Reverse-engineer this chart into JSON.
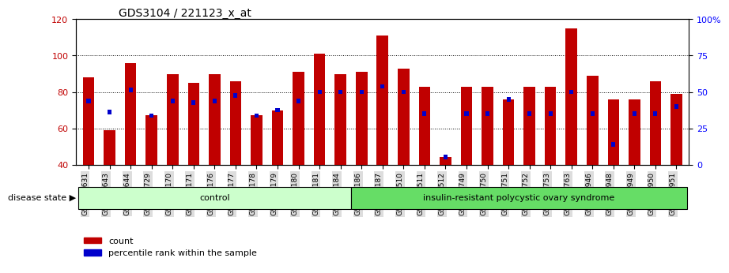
{
  "title": "GDS3104 / 221123_x_at",
  "samples": [
    "GSM155631",
    "GSM155643",
    "GSM155644",
    "GSM155729",
    "GSM156170",
    "GSM156171",
    "GSM156176",
    "GSM156177",
    "GSM156178",
    "GSM156179",
    "GSM156180",
    "GSM156181",
    "GSM156184",
    "GSM156186",
    "GSM156187",
    "GSM156510",
    "GSM156511",
    "GSM156512",
    "GSM156749",
    "GSM156750",
    "GSM156751",
    "GSM156752",
    "GSM156753",
    "GSM156763",
    "GSM156946",
    "GSM156948",
    "GSM156949",
    "GSM156950",
    "GSM156951"
  ],
  "red_values": [
    88,
    59,
    96,
    67,
    90,
    85,
    90,
    86,
    67,
    70,
    91,
    101,
    90,
    91,
    111,
    93,
    83,
    44,
    83,
    83,
    76,
    83,
    83,
    115,
    89,
    76,
    76,
    86,
    79
  ],
  "blue_values": [
    75,
    69,
    81,
    67,
    75,
    74,
    75,
    78,
    67,
    70,
    75,
    80,
    80,
    80,
    83,
    80,
    68,
    44,
    68,
    68,
    76,
    68,
    68,
    80,
    68,
    51,
    68,
    68,
    72
  ],
  "control_count": 13,
  "disease_count": 16,
  "control_label": "control",
  "disease_label": "insulin-resistant polycystic ovary syndrome",
  "disease_state_label": "disease state",
  "bar_color": "#C00000",
  "blue_color": "#0000CC",
  "ylim_left": [
    40,
    120
  ],
  "yticks_left": [
    40,
    60,
    80,
    100,
    120
  ],
  "yticks_right": [
    0,
    25,
    50,
    75,
    100
  ],
  "ylabel_right_labels": [
    "0",
    "25",
    "50",
    "75",
    "100%"
  ],
  "control_bg": "#CCFFCC",
  "disease_bg": "#66DD66",
  "tick_bg": "#DDDDDD",
  "legend_count_label": "count",
  "legend_pct_label": "percentile rank within the sample"
}
